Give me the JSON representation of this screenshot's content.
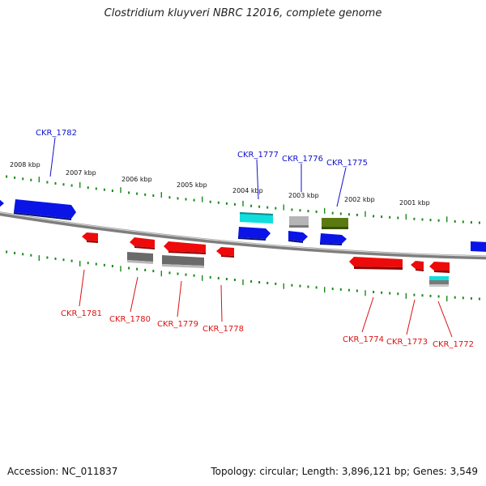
{
  "title": "Clostridium kluyveri NBRC 12016, complete genome",
  "footer": {
    "accession": "Accession: NC_011837",
    "summary": "Topology: circular; Length: 3,896,121 bp; Genes: 3,549"
  },
  "colors": {
    "backbone": "#8a8a8a",
    "ticks": "#1a8a1a",
    "forward_label": "#1010cc",
    "reverse_label": "#dd1111",
    "cds_forward": "#0a14e6",
    "cds_reverse": "#ee0a0a",
    "gray": "#777777",
    "light_gray": "#b0b0b0",
    "cyan": "#11dddd",
    "olive": "#5a7a10"
  },
  "kbp_labels": [
    "2008 kbp",
    "2007 kbp",
    "2006 kbp",
    "2005 kbp",
    "2004 kbp",
    "2003 kbp",
    "2002 kbp",
    "2001 kbp"
  ],
  "gene_labels": {
    "forward": [
      "CKR_1782",
      "CKR_1777",
      "CKR_1776",
      "CKR_1775"
    ],
    "reverse": [
      "CKR_1781",
      "CKR_1780",
      "CKR_1779",
      "CKR_1778",
      "CKR_1774",
      "CKR_1773",
      "CKR_1772"
    ]
  }
}
